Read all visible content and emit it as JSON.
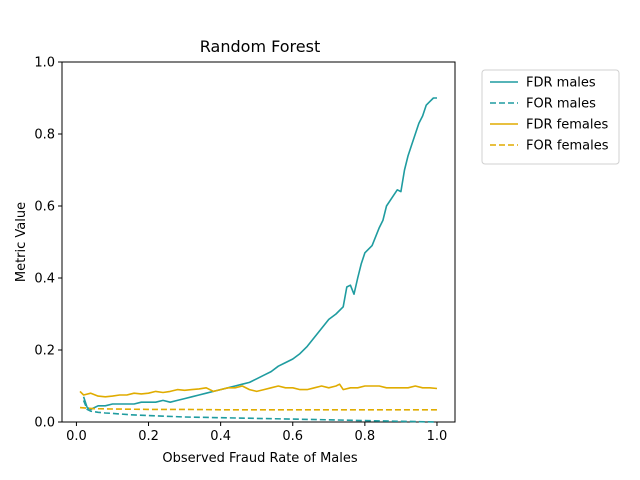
{
  "chart_data": {
    "type": "line",
    "title": "Random Forest",
    "xlabel": "Observed Fraud Rate of Males",
    "ylabel": "Metric Value",
    "xlim": [
      -0.04,
      1.05
    ],
    "ylim": [
      0,
      1
    ],
    "xticks": [
      "0.0",
      "0.2",
      "0.4",
      "0.6",
      "0.8",
      "1.0"
    ],
    "yticks": [
      "0.0",
      "0.2",
      "0.4",
      "0.6",
      "0.8",
      "1.0"
    ],
    "grid": false,
    "legend_position": "outside-right-top",
    "series": [
      {
        "name": "FDR males",
        "color": "#1f9ca0",
        "dash": "solid",
        "x": [
          0.02,
          0.03,
          0.04,
          0.05,
          0.06,
          0.08,
          0.1,
          0.12,
          0.14,
          0.16,
          0.18,
          0.2,
          0.22,
          0.24,
          0.26,
          0.28,
          0.3,
          0.32,
          0.34,
          0.36,
          0.38,
          0.4,
          0.42,
          0.44,
          0.46,
          0.48,
          0.5,
          0.52,
          0.54,
          0.56,
          0.58,
          0.6,
          0.62,
          0.64,
          0.66,
          0.68,
          0.7,
          0.72,
          0.74,
          0.75,
          0.76,
          0.77,
          0.78,
          0.79,
          0.8,
          0.82,
          0.84,
          0.85,
          0.86,
          0.88,
          0.89,
          0.9,
          0.91,
          0.92,
          0.93,
          0.94,
          0.95,
          0.96,
          0.97,
          0.98,
          0.99,
          1.0
        ],
        "y": [
          0.07,
          0.04,
          0.035,
          0.04,
          0.045,
          0.045,
          0.05,
          0.05,
          0.05,
          0.05,
          0.055,
          0.055,
          0.055,
          0.06,
          0.055,
          0.06,
          0.065,
          0.07,
          0.075,
          0.08,
          0.085,
          0.09,
          0.095,
          0.1,
          0.105,
          0.11,
          0.12,
          0.13,
          0.14,
          0.155,
          0.165,
          0.175,
          0.19,
          0.21,
          0.235,
          0.26,
          0.285,
          0.3,
          0.32,
          0.375,
          0.38,
          0.355,
          0.4,
          0.44,
          0.47,
          0.49,
          0.54,
          0.56,
          0.6,
          0.63,
          0.645,
          0.64,
          0.7,
          0.74,
          0.77,
          0.8,
          0.83,
          0.85,
          0.88,
          0.89,
          0.9,
          0.9
        ]
      },
      {
        "name": "FOR males",
        "color": "#1f9ca0",
        "dash": "dashed",
        "x": [
          0.02,
          0.03,
          0.04,
          0.06,
          0.08,
          0.1,
          0.15,
          0.2,
          0.3,
          0.4,
          0.5,
          0.6,
          0.7,
          0.8,
          0.9,
          1.0
        ],
        "y": [
          0.06,
          0.035,
          0.03,
          0.027,
          0.025,
          0.024,
          0.02,
          0.018,
          0.014,
          0.012,
          0.01,
          0.008,
          0.006,
          0.004,
          0.002,
          0.0
        ]
      },
      {
        "name": "FDR females",
        "color": "#e0ac00",
        "dash": "solid",
        "x": [
          0.01,
          0.02,
          0.04,
          0.06,
          0.08,
          0.1,
          0.12,
          0.14,
          0.16,
          0.18,
          0.2,
          0.22,
          0.24,
          0.26,
          0.28,
          0.3,
          0.32,
          0.34,
          0.36,
          0.38,
          0.4,
          0.42,
          0.44,
          0.46,
          0.48,
          0.5,
          0.52,
          0.54,
          0.56,
          0.58,
          0.6,
          0.62,
          0.64,
          0.66,
          0.68,
          0.7,
          0.72,
          0.73,
          0.74,
          0.76,
          0.78,
          0.8,
          0.82,
          0.84,
          0.86,
          0.88,
          0.9,
          0.92,
          0.94,
          0.96,
          0.98,
          1.0
        ],
        "y": [
          0.085,
          0.075,
          0.08,
          0.072,
          0.07,
          0.072,
          0.075,
          0.075,
          0.08,
          0.078,
          0.08,
          0.085,
          0.082,
          0.085,
          0.09,
          0.088,
          0.09,
          0.092,
          0.095,
          0.085,
          0.09,
          0.095,
          0.095,
          0.1,
          0.09,
          0.085,
          0.09,
          0.095,
          0.1,
          0.095,
          0.095,
          0.09,
          0.09,
          0.095,
          0.1,
          0.095,
          0.1,
          0.105,
          0.09,
          0.095,
          0.095,
          0.1,
          0.1,
          0.1,
          0.095,
          0.095,
          0.095,
          0.095,
          0.1,
          0.095,
          0.095,
          0.093
        ]
      },
      {
        "name": "FOR females",
        "color": "#e0ac00",
        "dash": "dashed",
        "x": [
          0.01,
          0.05,
          0.1,
          0.2,
          0.3,
          0.4,
          0.5,
          0.6,
          0.7,
          0.8,
          0.9,
          1.0
        ],
        "y": [
          0.04,
          0.037,
          0.036,
          0.035,
          0.035,
          0.034,
          0.034,
          0.034,
          0.034,
          0.034,
          0.034,
          0.034
        ]
      }
    ]
  }
}
